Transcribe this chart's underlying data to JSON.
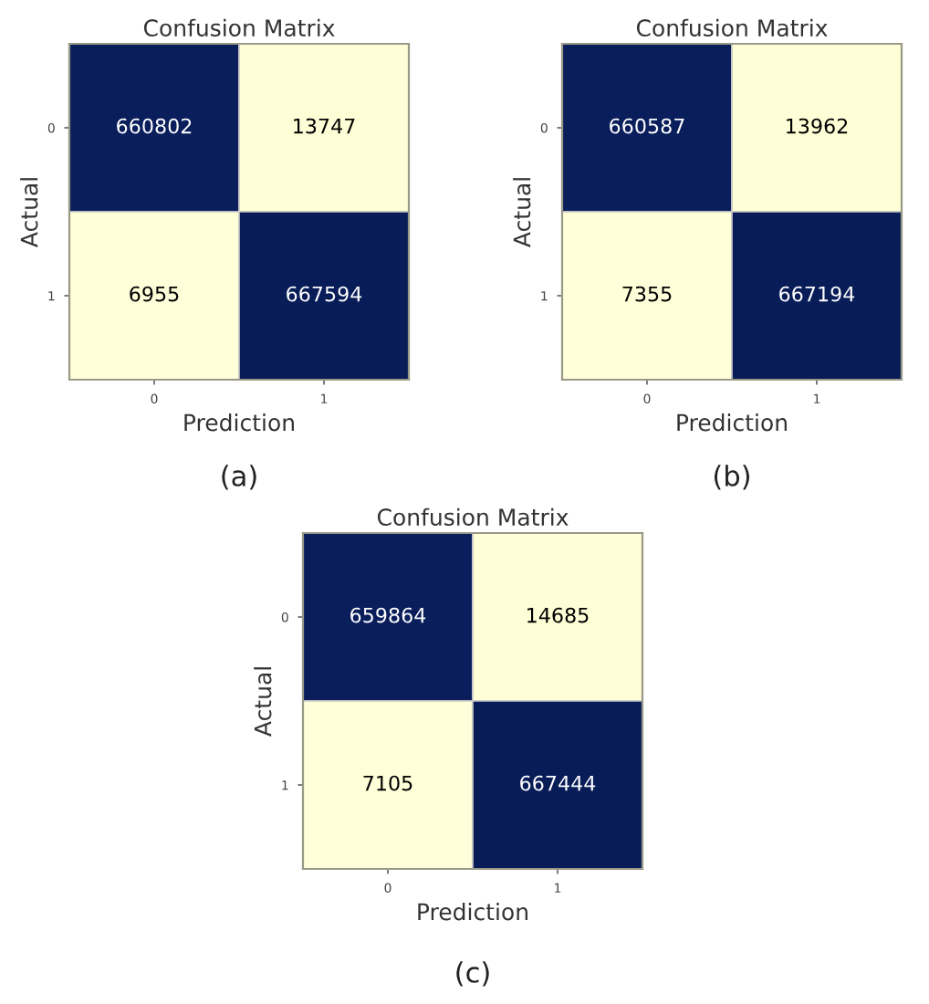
{
  "chart_data": [
    {
      "type": "heatmap",
      "title": "Confusion Matrix",
      "xlabel": "Prediction",
      "ylabel": "Actual",
      "categories": [
        "0",
        "1"
      ],
      "y_categories": [
        "0",
        "1"
      ],
      "cells": [
        [
          660802,
          13747
        ],
        [
          6955,
          667594
        ]
      ],
      "data_labels": true,
      "annotations": [
        "(a)"
      ]
    },
    {
      "type": "heatmap",
      "title": "Confusion Matrix",
      "xlabel": "Prediction",
      "ylabel": "Actual",
      "categories": [
        "0",
        "1"
      ],
      "y_categories": [
        "0",
        "1"
      ],
      "cells": [
        [
          660587,
          13962
        ],
        [
          7355,
          667194
        ]
      ],
      "data_labels": true,
      "annotations": [
        "(b)"
      ]
    },
    {
      "type": "heatmap",
      "title": "Confusion Matrix",
      "xlabel": "Prediction",
      "ylabel": "Actual",
      "categories": [
        "0",
        "1"
      ],
      "y_categories": [
        "0",
        "1"
      ],
      "cells": [
        [
          659864,
          14685
        ],
        [
          7105,
          667444
        ]
      ],
      "data_labels": true,
      "annotations": [
        "(c)"
      ]
    }
  ]
}
